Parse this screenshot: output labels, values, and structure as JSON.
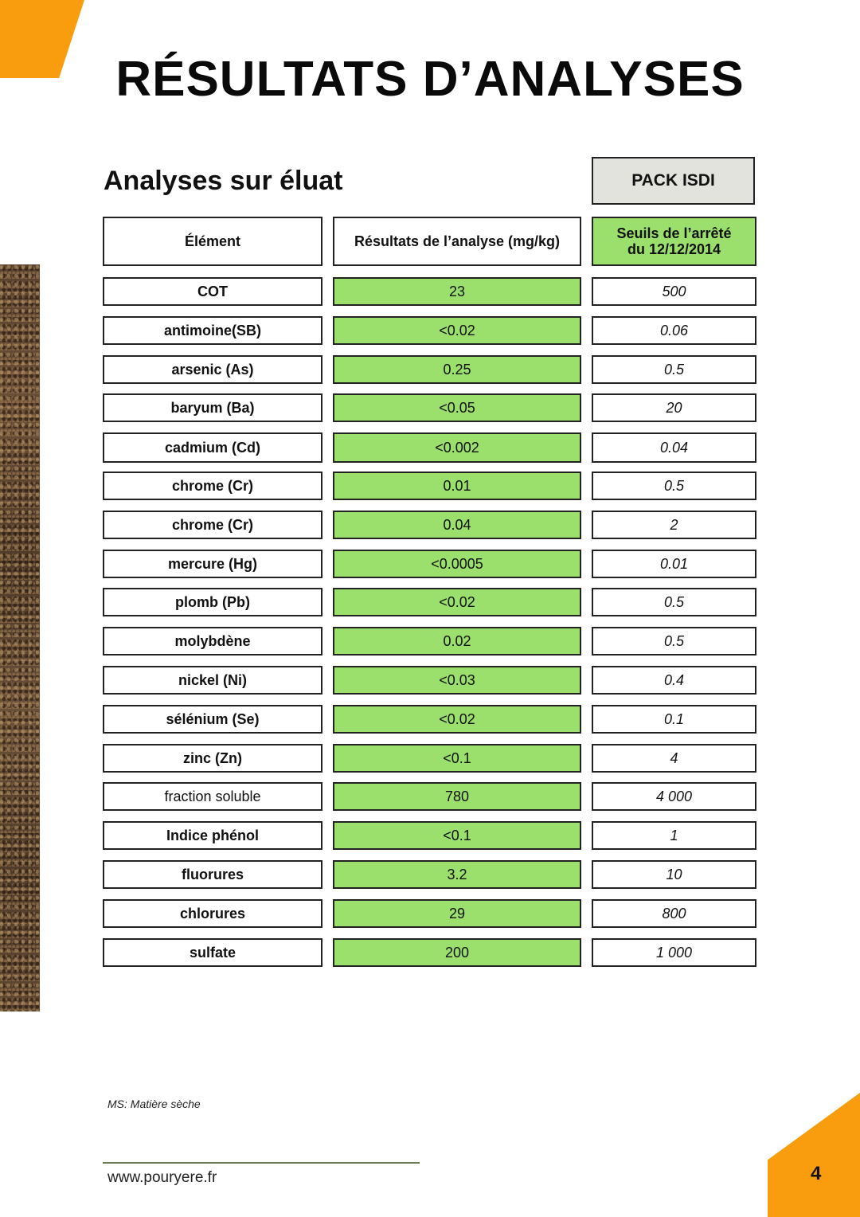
{
  "title": "RÉSULTATS D’ANALYSES",
  "subtitle": "Analyses sur éluat",
  "pack_label": "PACK ISDI",
  "table": {
    "headers": [
      "Élément",
      "Résultats de l’analyse (mg/kg)",
      "Seuils de l’arrêté du 12/12/2014"
    ],
    "rows": [
      {
        "element": "COT",
        "result": "23",
        "threshold": "500"
      },
      {
        "element": "antimoine(SB)",
        "result": "<0.02",
        "threshold": "0.06"
      },
      {
        "element": "arsenic (As)",
        "result": "0.25",
        "threshold": "0.5"
      },
      {
        "element": "baryum (Ba)",
        "result": "<0.05",
        "threshold": "20"
      },
      {
        "element": "cadmium (Cd)",
        "result": "<0.002",
        "threshold": "0.04"
      },
      {
        "element": "chrome (Cr)",
        "result": "0.01",
        "threshold": "0.5"
      },
      {
        "element": "chrome (Cr)",
        "result": "0.04",
        "threshold": "2"
      },
      {
        "element": "mercure (Hg)",
        "result": "<0.0005",
        "threshold": "0.01"
      },
      {
        "element": "plomb (Pb)",
        "result": "<0.02",
        "threshold": "0.5"
      },
      {
        "element": "molybdène",
        "result": "0.02",
        "threshold": "0.5"
      },
      {
        "element": "nickel (Ni)",
        "result": "<0.03",
        "threshold": "0.4"
      },
      {
        "element": "sélénium (Se)",
        "result": "<0.02",
        "threshold": "0.1"
      },
      {
        "element": "zinc (Zn)",
        "result": "<0.1",
        "threshold": "4"
      },
      {
        "element": "fraction soluble",
        "result": "780",
        "threshold": "4 000"
      },
      {
        "element": "Indice phénol",
        "result": "<0.1",
        "threshold": "1"
      },
      {
        "element": "fluorures",
        "result": "3.2",
        "threshold": "10"
      },
      {
        "element": "chlorures",
        "result": "29",
        "threshold": "800"
      },
      {
        "element": "sulfate",
        "result": "200",
        "threshold": "1 000"
      }
    ]
  },
  "note": "MS: Matière sèche",
  "footer": {
    "url": "www.pouryere.fr",
    "page_number": "4"
  },
  "colors": {
    "accent_orange": "#f99d0e",
    "result_green": "#9be06c",
    "pack_grey": "#e3e3dd"
  }
}
